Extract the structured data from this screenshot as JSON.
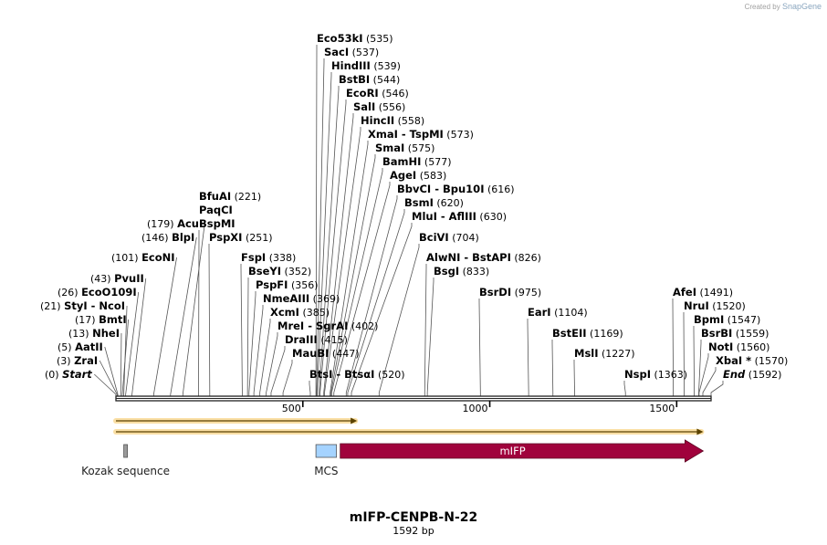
{
  "brand": {
    "prefix": "Created by",
    "name": "SnapGene"
  },
  "plasmid": {
    "name": "mIFP-CENPB-N-22",
    "length_label": "1592 bp",
    "length": 1592
  },
  "scale_ticks": [
    {
      "label": "500",
      "pos": 500
    },
    {
      "label": "1000",
      "pos": 1000
    },
    {
      "label": "1500",
      "pos": 1500
    }
  ],
  "sites": [
    {
      "name": "Start",
      "pos_label": "(0)",
      "pos": 0,
      "italic": true
    },
    {
      "name": "ZraI",
      "pos_label": "(3)",
      "pos": 3
    },
    {
      "name": "AatII",
      "pos_label": "(5)",
      "pos": 5
    },
    {
      "name": "NheI",
      "pos_label": "(13)",
      "pos": 13
    },
    {
      "name": "BmtI",
      "pos_label": "(17)",
      "pos": 17
    },
    {
      "name": "StyI",
      "name2": "NcoI",
      "pos_label": "(21)",
      "pos": 21
    },
    {
      "name": "EcoO109I",
      "pos_label": "(26)",
      "pos": 26
    },
    {
      "name": "PvuII",
      "pos_label": "(43)",
      "pos": 43
    },
    {
      "name": "EcoNI",
      "pos_label": "(101)",
      "pos": 101
    },
    {
      "name": "BlpI",
      "pos_label": "(146)",
      "pos": 146
    },
    {
      "name": "AcuI",
      "pos_label": "(179)",
      "pos": 179
    },
    {
      "name": "BfuAI",
      "pos_label": "(221)",
      "pos": 221,
      "extra": [
        "PaqCI",
        "BspMI"
      ]
    },
    {
      "name": "PspXI",
      "pos_label": "(251)",
      "pos": 251
    },
    {
      "name": "FspI",
      "pos_label": "(338)",
      "pos": 338
    },
    {
      "name": "BseYI",
      "pos_label": "(352)",
      "pos": 352
    },
    {
      "name": "PspFI",
      "pos_label": "(356)",
      "pos": 356
    },
    {
      "name": "NmeAIII",
      "pos_label": "(369)",
      "pos": 369
    },
    {
      "name": "XcmI",
      "pos_label": "(385)",
      "pos": 385
    },
    {
      "name": "MreI",
      "name2": "SgrAI",
      "pos_label": "(402)",
      "pos": 402
    },
    {
      "name": "DraIII",
      "pos_label": "(415)",
      "pos": 415
    },
    {
      "name": "MauBI",
      "pos_label": "(447)",
      "pos": 447
    },
    {
      "name": "BtsI",
      "name2": "BtsαI",
      "pos_label": "(520)",
      "pos": 520
    },
    {
      "name": "Eco53kI",
      "pos_label": "(535)",
      "pos": 535
    },
    {
      "name": "SacI",
      "pos_label": "(537)",
      "pos": 537
    },
    {
      "name": "HindIII",
      "pos_label": "(539)",
      "pos": 539
    },
    {
      "name": "BstBI",
      "pos_label": "(544)",
      "pos": 544
    },
    {
      "name": "EcoRI",
      "pos_label": "(546)",
      "pos": 546
    },
    {
      "name": "SalI",
      "pos_label": "(556)",
      "pos": 556
    },
    {
      "name": "HincII",
      "pos_label": "(558)",
      "pos": 558
    },
    {
      "name": "XmaI",
      "name2": "TspMI",
      "pos_label": "(573)",
      "pos": 573
    },
    {
      "name": "SmaI",
      "pos_label": "(575)",
      "pos": 575
    },
    {
      "name": "BamHI",
      "pos_label": "(577)",
      "pos": 577
    },
    {
      "name": "AgeI",
      "pos_label": "(583)",
      "pos": 583
    },
    {
      "name": "BbvCI",
      "name2": "Bpu10I",
      "pos_label": "(616)",
      "pos": 616
    },
    {
      "name": "BsmI",
      "pos_label": "(620)",
      "pos": 620
    },
    {
      "name": "MluI",
      "name2": "AflIII",
      "pos_label": "(630)",
      "pos": 630
    },
    {
      "name": "BciVI",
      "pos_label": "(704)",
      "pos": 704
    },
    {
      "name": "AlwNI",
      "name2": "BstAPI",
      "pos_label": "(826)",
      "pos": 826
    },
    {
      "name": "BsgI",
      "pos_label": "(833)",
      "pos": 833
    },
    {
      "name": "BsrDI",
      "pos_label": "(975)",
      "pos": 975
    },
    {
      "name": "EarI",
      "pos_label": "(1104)",
      "pos": 1104
    },
    {
      "name": "BstEII",
      "pos_label": "(1169)",
      "pos": 1169
    },
    {
      "name": "MslI",
      "pos_label": "(1227)",
      "pos": 1227
    },
    {
      "name": "NspI",
      "pos_label": "(1363)",
      "pos": 1363
    },
    {
      "name": "AfeI",
      "pos_label": "(1491)",
      "pos": 1491
    },
    {
      "name": "NruI",
      "pos_label": "(1520)",
      "pos": 1520
    },
    {
      "name": "BpmI",
      "pos_label": "(1547)",
      "pos": 1547
    },
    {
      "name": "BsrBI",
      "pos_label": "(1559)",
      "pos": 1559
    },
    {
      "name": "NotI",
      "pos_label": "(1560)",
      "pos": 1560
    },
    {
      "name": "XbaI *",
      "pos_label": "(1570)",
      "pos": 1570
    },
    {
      "name": "End",
      "pos_label": "(1592)",
      "pos": 1592,
      "italic": true
    }
  ],
  "features": [
    {
      "name": "Kozak sequence",
      "start": 21,
      "end": 30,
      "kind": "box",
      "color": "#9a9a9a"
    },
    {
      "name": "MCS",
      "start": 535,
      "end": 590,
      "kind": "box",
      "color": "#a5d3ff"
    },
    {
      "name": "mIFP",
      "start": 600,
      "end": 1571,
      "kind": "arrow",
      "color": "#a0023c"
    }
  ],
  "orf_tracks": [
    {
      "start": 0,
      "end": 645
    },
    {
      "start": 0,
      "end": 1571
    }
  ],
  "colors": {
    "orf_line": "#d4a017",
    "orf_glow": "#f6c65c",
    "backbone": "#222222",
    "site_line": "#555555"
  }
}
